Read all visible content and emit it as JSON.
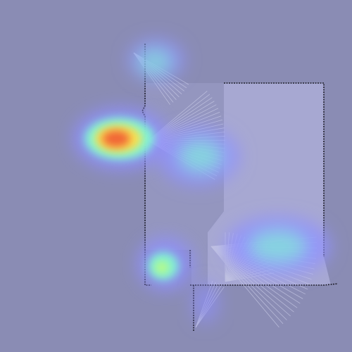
{
  "colors": {
    "background": "#8a8cb4",
    "free_space": "#a9aad4",
    "wall": "#1e1e2a",
    "scan_rays": "#c8cae6",
    "heat_low": "#8f8fff",
    "heat_mid": "#7fffd0",
    "heat_high": "#ffe24a",
    "heat_peak": "#f05030"
  },
  "layers": [
    "occupancy-grid",
    "laser-scan-rays",
    "attention-heatmap"
  ],
  "heatmap": {
    "colormap": "jet",
    "hotspots": [
      {
        "id": "west-doorway",
        "intensity": 1.0
      },
      {
        "id": "north-corridor",
        "intensity": 0.6
      },
      {
        "id": "room-center",
        "intensity": 0.55
      },
      {
        "id": "south-east-room",
        "intensity": 0.6
      },
      {
        "id": "south-west-corner",
        "intensity": 0.7
      }
    ]
  }
}
